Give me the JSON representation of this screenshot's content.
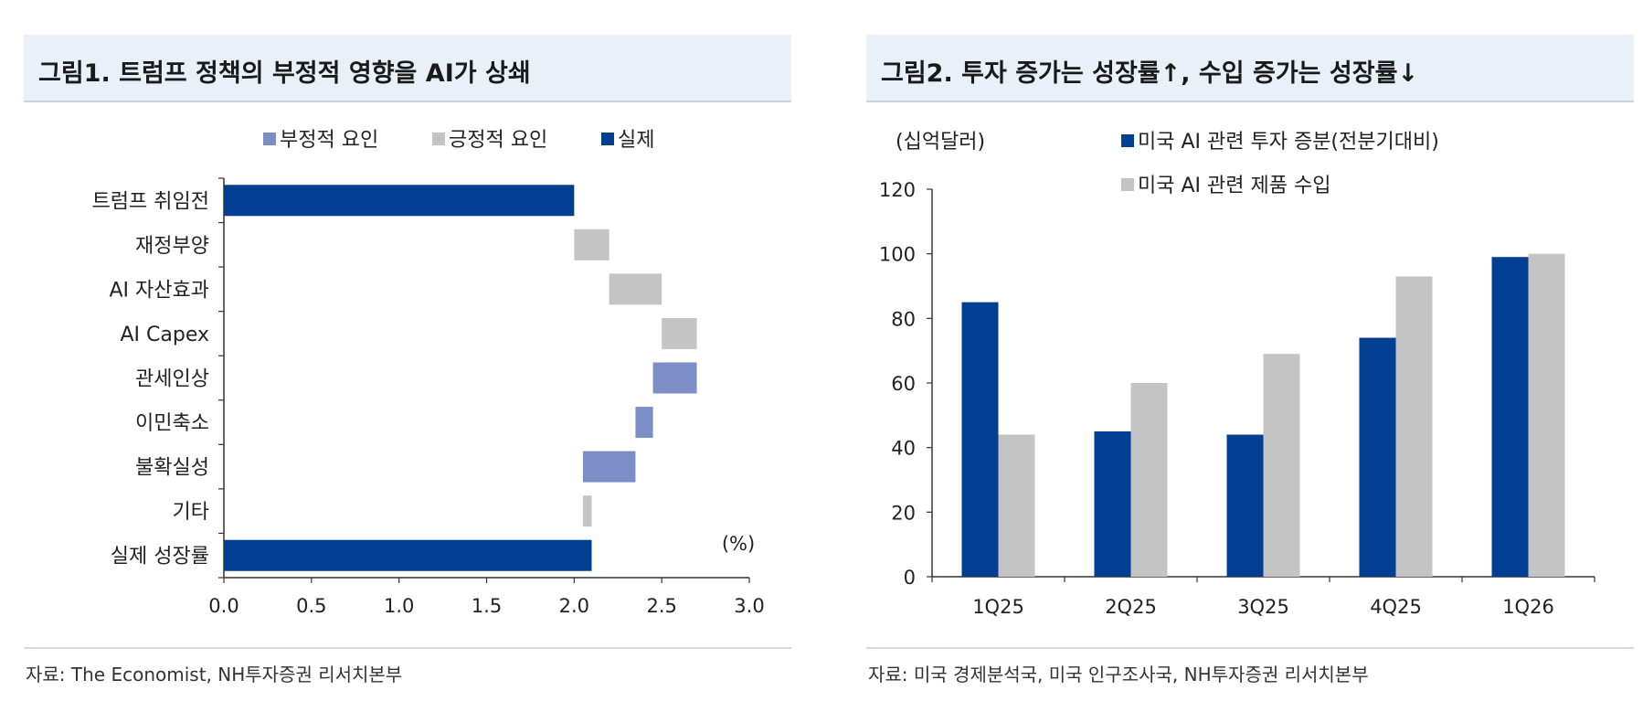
{
  "left_panel": {
    "title": "그림1. 트럼프 정책의 부정적 영향을 AI가 상쇄",
    "source": "자료: The Economist, NH투자증권 리서치본부"
  },
  "right_panel": {
    "title": "그림2. 투자 증가는 성장률↑, 수입 증가는 성장률↓",
    "source": "자료: 미국 경제분석국, 미국 인구조사국, NH투자증권 리서치본부"
  },
  "colors": {
    "actual": "#003f91",
    "negative": "#7b8fc6",
    "positive": "#c4c4c4",
    "title_bg": "#eaf0f8"
  },
  "chart_data": [
    {
      "type": "bar",
      "orientation": "horizontal-waterfall",
      "title": "그림1. 트럼프 정책의 부정적 영향을 AI가 상쇄",
      "unit_label": "(%)",
      "legend_position": "top",
      "legend": [
        {
          "name": "부정적 요인",
          "key": "negative"
        },
        {
          "name": "긍정적 요인",
          "key": "positive"
        },
        {
          "name": "실제",
          "key": "actual"
        }
      ],
      "xlim": [
        0,
        3.0
      ],
      "x_ticks": [
        "0.0",
        "0.5",
        "1.0",
        "1.5",
        "2.0",
        "2.5",
        "3.0"
      ],
      "categories": [
        "트럼프 취임전",
        "재정부양",
        "AI 자산효과",
        "AI Capex",
        "관세인상",
        "이민축소",
        "불확실성",
        "기타",
        "실제 성장률"
      ],
      "bars": [
        {
          "start": 0,
          "end": 2.0,
          "kind": "actual"
        },
        {
          "start": 2.0,
          "end": 2.2,
          "kind": "positive"
        },
        {
          "start": 2.2,
          "end": 2.5,
          "kind": "positive"
        },
        {
          "start": 2.5,
          "end": 2.7,
          "kind": "positive"
        },
        {
          "start": 2.45,
          "end": 2.7,
          "kind": "negative"
        },
        {
          "start": 2.35,
          "end": 2.45,
          "kind": "negative"
        },
        {
          "start": 2.05,
          "end": 2.35,
          "kind": "negative"
        },
        {
          "start": 2.05,
          "end": 2.1,
          "kind": "positive"
        },
        {
          "start": 0,
          "end": 2.1,
          "kind": "actual"
        }
      ]
    },
    {
      "type": "bar",
      "title": "그림2. 투자 증가는 성장률↑, 수입 증가는 성장률↓",
      "ylabel": "(십억달러)",
      "legend_position": "top",
      "categories": [
        "1Q25",
        "2Q25",
        "3Q25",
        "4Q25",
        "1Q26"
      ],
      "ylim": [
        0,
        120
      ],
      "y_ticks": [
        "0",
        "20",
        "40",
        "60",
        "80",
        "100",
        "120"
      ],
      "series": [
        {
          "name": "미국 AI 관련 투자 증분(전분기대비)",
          "color": "#003f91",
          "values": [
            85,
            45,
            44,
            74,
            99
          ]
        },
        {
          "name": "미국 AI 관련 제품 수입",
          "color": "#c4c4c4",
          "values": [
            44,
            60,
            69,
            93,
            100
          ]
        }
      ]
    }
  ]
}
